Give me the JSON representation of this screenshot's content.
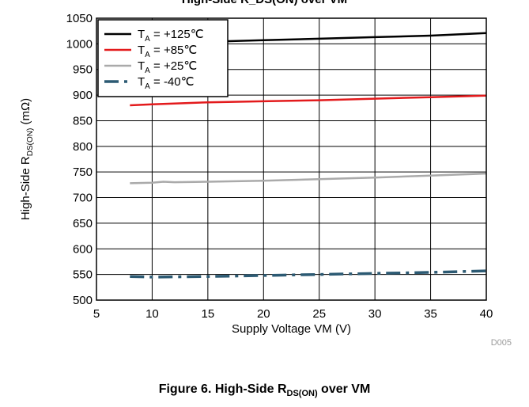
{
  "figure": {
    "caption_prefix": "Figure 6. High-Side R",
    "caption_sub": "DS(ON)",
    "caption_suffix": " over VM",
    "credit": "D005",
    "top_title": "High-Side R_DS(ON) over VM"
  },
  "chart_data": {
    "type": "line",
    "xlabel": "Supply Voltage VM (V)",
    "ylabel_prefix": "High-Side R",
    "ylabel_sub": "DS(ON)",
    "ylabel_suffix": " (mΩ)",
    "xlim": [
      5,
      40
    ],
    "ylim": [
      500,
      1050
    ],
    "xticks": [
      5,
      10,
      15,
      20,
      25,
      30,
      35,
      40
    ],
    "yticks": [
      500,
      550,
      600,
      650,
      700,
      750,
      800,
      850,
      900,
      950,
      1000,
      1050
    ],
    "grid": true,
    "legend": "top-left",
    "series": [
      {
        "name_main": "T",
        "name_sub": "A",
        "name_rest": " = +125℃",
        "color": "#000000",
        "style": "solid",
        "x": [
          8,
          10,
          15,
          20,
          25,
          30,
          35,
          40
        ],
        "y": [
          998,
          1000,
          1004,
          1007,
          1010,
          1013,
          1016,
          1021
        ]
      },
      {
        "name_main": "T",
        "name_sub": "A",
        "name_rest": " = +85℃",
        "color": "#e31a1c",
        "style": "solid",
        "x": [
          8,
          10,
          15,
          20,
          25,
          30,
          35,
          40
        ],
        "y": [
          880,
          882,
          886,
          888,
          890,
          893,
          896,
          899
        ]
      },
      {
        "name_main": "T",
        "name_sub": "A",
        "name_rest": " = +25℃",
        "color": "#aaaaaa",
        "style": "solid",
        "x": [
          8,
          10,
          11,
          12,
          15,
          20,
          25,
          30,
          35,
          40
        ],
        "y": [
          728,
          729,
          731,
          730,
          731,
          733,
          736,
          739,
          743,
          747
        ]
      },
      {
        "name_main": "T",
        "name_sub": "A",
        "name_rest": " = -40℃",
        "color": "#2c5a73",
        "style": "dashdot",
        "x": [
          8,
          10,
          15,
          20,
          25,
          30,
          35,
          40
        ],
        "y": [
          546,
          545,
          546,
          548,
          550,
          552,
          554,
          557
        ]
      }
    ]
  }
}
